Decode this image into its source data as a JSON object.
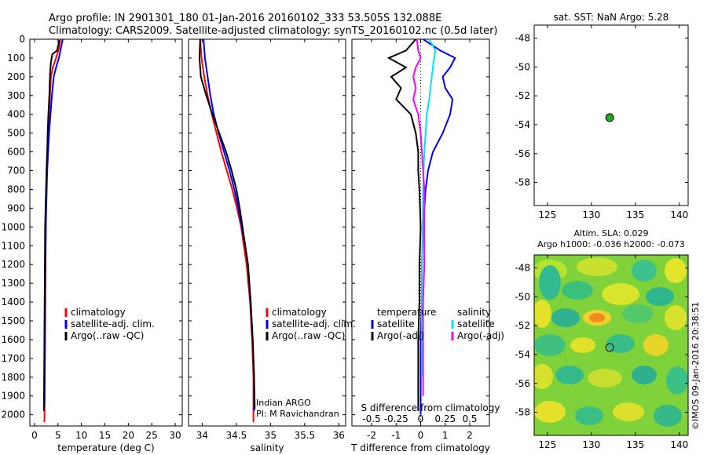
{
  "title_line1": "Argo profile: IN 2901301_180 01-Jan-2016 20160102_333 53.505S 132.088E",
  "title_line2": "Climatology: CARS2009. Satellite-adjusted climatology: synTS_20160102.nc (0.5d later)",
  "sst_title": "sat. SST: NaN Argo: 5.28",
  "sla_title1": "Altim. SLA: 0.029",
  "sla_title2": "Argo h1000: -0.036 h2000: -0.073",
  "credit": "©IMOS 09-Jan-2016 20:38:51",
  "colors": {
    "climatology": "#ff0000",
    "satellite": "#0000ff",
    "argo": "#000000",
    "salinity_sat": "#00e5ee",
    "salinity_argo": "#ff00ff",
    "marker": "#22aa22"
  },
  "chart_data": [
    {
      "type": "line",
      "id": "temperature",
      "xlabel": "temperature (deg C)",
      "ylabel": "",
      "xlim": [
        -1,
        31.5
      ],
      "ylim": [
        2060,
        0
      ],
      "xticks": [
        0,
        5,
        10,
        15,
        20,
        25,
        30
      ],
      "yticks": [
        0,
        100,
        200,
        300,
        400,
        500,
        600,
        700,
        800,
        900,
        1000,
        1100,
        1200,
        1300,
        1400,
        1500,
        1600,
        1700,
        1800,
        1900,
        2000
      ],
      "legend": [
        "climatology",
        "satellite-adj. clim.",
        "Argo(..raw -QC)"
      ],
      "legend_position": "bottom-left",
      "series": [
        {
          "name": "climatology",
          "color": "#ff0000",
          "x": [
            5.5,
            5.2,
            4.6,
            3.9,
            3.5,
            3.3,
            3.1,
            2.9,
            2.7,
            2.6,
            2.5,
            2.45,
            2.4,
            2.35,
            2.3,
            2.25,
            2.2,
            2.15,
            2.1
          ],
          "y": [
            0,
            50,
            100,
            150,
            200,
            300,
            400,
            500,
            600,
            700,
            800,
            900,
            1000,
            1200,
            1400,
            1600,
            1800,
            1950,
            2040
          ]
        },
        {
          "name": "satellite-adj. clim.",
          "color": "#0000ff",
          "x": [
            6.0,
            5.6,
            5.2,
            4.6,
            4.1,
            3.7,
            3.4,
            3.1,
            2.9,
            2.7,
            2.6,
            2.5,
            2.4,
            2.3,
            2.25,
            2.2,
            2.15,
            2.1
          ],
          "y": [
            0,
            50,
            100,
            150,
            200,
            300,
            400,
            500,
            600,
            700,
            800,
            900,
            1000,
            1200,
            1400,
            1600,
            1800,
            1950
          ]
        },
        {
          "name": "Argo(..raw -QC)",
          "color": "#000000",
          "x": [
            5.3,
            4.8,
            3.8,
            3.5,
            3.3,
            3.15,
            2.95,
            2.8,
            2.7,
            2.55,
            2.45,
            2.35,
            2.25,
            2.2,
            2.15,
            2.1,
            2.05,
            2.0
          ],
          "y": [
            5,
            60,
            80,
            120,
            180,
            300,
            400,
            500,
            600,
            700,
            800,
            900,
            1000,
            1200,
            1400,
            1600,
            1800,
            1980
          ]
        }
      ]
    },
    {
      "type": "line",
      "id": "salinity",
      "xlabel": "salinity",
      "ylabel": "",
      "xlim": [
        33.8,
        36.1
      ],
      "ylim": [
        2060,
        0
      ],
      "xticks": [
        34,
        34.5,
        35,
        35.5,
        36
      ],
      "legend": [
        "climatology",
        "satellite-adj. clim.",
        "Argo(..raw -QC)"
      ],
      "legend_position": "bottom-right",
      "annotation": [
        "Indian ARGO",
        "PI: M Ravichandran"
      ],
      "series": [
        {
          "name": "climatology",
          "color": "#ff0000",
          "x": [
            33.97,
            33.99,
            34.03,
            34.08,
            34.14,
            34.21,
            34.28,
            34.36,
            34.44,
            34.51,
            34.57,
            34.61,
            34.65,
            34.7,
            34.73,
            34.75,
            34.75
          ],
          "y": [
            0,
            100,
            200,
            300,
            400,
            500,
            600,
            700,
            800,
            900,
            1000,
            1100,
            1200,
            1400,
            1600,
            1800,
            2040
          ]
        },
        {
          "name": "satellite-adj. clim.",
          "color": "#0000ff",
          "x": [
            34.02,
            34.04,
            34.08,
            34.12,
            34.17,
            34.24,
            34.32,
            34.4,
            34.47,
            34.53,
            34.58,
            34.63,
            34.67,
            34.71,
            34.74,
            34.76,
            34.76
          ],
          "y": [
            0,
            100,
            200,
            300,
            400,
            500,
            600,
            700,
            800,
            900,
            1000,
            1100,
            1200,
            1400,
            1600,
            1800,
            1980
          ]
        },
        {
          "name": "Argo(..raw -QC)",
          "color": "#000000",
          "x": [
            33.97,
            33.96,
            33.98,
            34.06,
            34.15,
            34.25,
            34.35,
            34.43,
            34.5,
            34.55,
            34.59,
            34.63,
            34.67,
            34.71,
            34.74,
            34.76,
            34.77
          ],
          "y": [
            0,
            100,
            200,
            300,
            400,
            500,
            600,
            700,
            800,
            900,
            1000,
            1100,
            1200,
            1400,
            1600,
            1800,
            1970
          ]
        }
      ]
    },
    {
      "type": "line",
      "id": "differences",
      "xlabel": "T difference from climatology",
      "xlabel_top": "S difference from climatology",
      "ylabel": "",
      "xlim": [
        -2.8,
        2.8
      ],
      "ylim": [
        2060,
        0
      ],
      "xticks": [
        -2,
        -1,
        0,
        1,
        2
      ],
      "xticks_s": [
        -0.5,
        -0.25,
        0,
        0.25,
        0.5
      ],
      "legend_temperature_title": "temperature",
      "legend_salinity_title": "salinity",
      "legend_temperature": [
        "satellite",
        "Argo(-adj)"
      ],
      "legend_salinity": [
        "satellite",
        "Argo(-adj)"
      ],
      "series": [
        {
          "name": "temperature satellite",
          "color": "#0000ff",
          "x": [
            0.1,
            0.8,
            1.4,
            1.2,
            0.9,
            1.0,
            1.3,
            1.2,
            0.9,
            0.5,
            0.3,
            0.2,
            0.1,
            0.05,
            0.05,
            0.0,
            0.0,
            0.0
          ],
          "y": [
            0,
            60,
            100,
            150,
            200,
            260,
            320,
            400,
            500,
            600,
            700,
            800,
            1000,
            1200,
            1400,
            1600,
            1800,
            2000
          ]
        },
        {
          "name": "temperature Argo(-adj)",
          "color": "#000000",
          "x": [
            -0.2,
            -0.6,
            -1.3,
            -0.6,
            -1.2,
            -0.8,
            -1.0,
            -0.4,
            -0.2,
            -0.1,
            -0.1,
            -0.05,
            0.0,
            -0.05,
            -0.05,
            -0.1,
            -0.1,
            -0.1
          ],
          "y": [
            0,
            60,
            100,
            150,
            200,
            260,
            320,
            400,
            500,
            600,
            700,
            800,
            1000,
            1200,
            1400,
            1600,
            1800,
            1980
          ]
        },
        {
          "name": "salinity satellite",
          "color": "#00e5ee",
          "x": [
            0.35,
            0.6,
            0.55,
            0.5,
            0.45,
            0.4,
            0.35,
            0.25,
            0.2,
            0.15,
            0.12,
            0.1,
            0.08,
            0.05,
            0.05,
            0.05,
            0.05
          ],
          "y": [
            0,
            60,
            100,
            150,
            200,
            260,
            320,
            400,
            500,
            600,
            700,
            800,
            1000,
            1200,
            1400,
            1600,
            1800
          ]
        },
        {
          "name": "salinity Argo(-adj)",
          "color": "#ff00ff",
          "x": [
            -0.15,
            -0.1,
            0.0,
            -0.2,
            -0.3,
            -0.2,
            -0.3,
            -0.1,
            0.0,
            0.05,
            0.1,
            0.15,
            0.15,
            0.15,
            0.1,
            0.1,
            0.1
          ],
          "y": [
            0,
            60,
            100,
            150,
            200,
            260,
            320,
            400,
            500,
            600,
            700,
            800,
            1000,
            1200,
            1400,
            1600,
            1900
          ]
        }
      ]
    },
    {
      "type": "scatter",
      "id": "sst_map",
      "title": "sat. SST: NaN Argo: 5.28",
      "xlim": [
        123.5,
        141
      ],
      "ylim": [
        -59.6,
        -47.1
      ],
      "xticks": [
        125,
        130,
        135,
        140
      ],
      "yticks": [
        -48,
        -50,
        -52,
        -54,
        -56,
        -58
      ],
      "points": [
        {
          "x": 132.088,
          "y": -53.505
        }
      ]
    },
    {
      "type": "heatmap",
      "id": "sla_map",
      "title": "Altim. SLA: 0.029",
      "xlim": [
        123.5,
        141
      ],
      "ylim": [
        -59.6,
        -47.1
      ],
      "xticks": [
        125,
        130,
        135,
        140
      ],
      "yticks": [
        -48,
        -50,
        -52,
        -54,
        -56,
        -58
      ],
      "points": [
        {
          "x": 132.088,
          "y": -53.505
        }
      ]
    }
  ]
}
